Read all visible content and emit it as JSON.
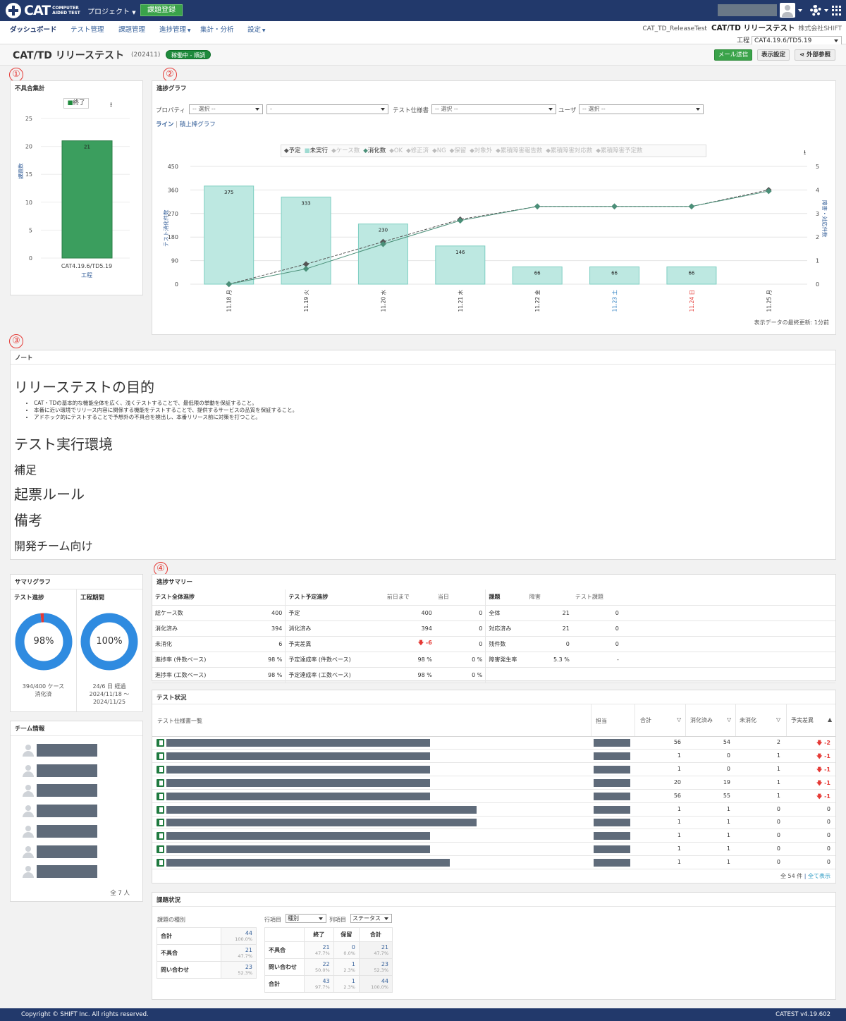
{
  "app": {
    "logo_text": "CAT",
    "logo_sub1": "COMPUTER",
    "logo_sub2": "AIDED TEST",
    "project_menu": "プロジェクト",
    "register_button": "課題登録"
  },
  "nav": {
    "items": [
      {
        "label": "ダッシュボード",
        "active": true
      },
      {
        "label": "テスト管理"
      },
      {
        "label": "課題管理"
      },
      {
        "label": "進捗管理"
      },
      {
        "label": "集計・分析"
      },
      {
        "label": "設定"
      }
    ],
    "release_test": "CAT_TD_ReleaseTest",
    "project_title": "CAT/TD リリーステスト",
    "company": "株式会社SHIFT",
    "koutei_label": "工程",
    "koutei_value": "CAT4.19.6/TD5.19"
  },
  "titlebar": {
    "title": "CAT/TD リリーステスト",
    "code": "(202411)",
    "status": "稼働中 - 順調",
    "mail_button": "メール送信",
    "display_button": "表示設定",
    "external_button": "外部参照"
  },
  "markers": [
    "①",
    "②",
    "③",
    "④"
  ],
  "defect_panel": {
    "title": "不具合集計",
    "legend": "終了",
    "ylabel": "課題数",
    "xlabel": "工程",
    "category": "CAT4.19.6/TD5.19",
    "value": 21,
    "yticks": [
      "25",
      "20",
      "15",
      "10",
      "5",
      "0"
    ],
    "bar_color": "#3b9e5e"
  },
  "progress_graph": {
    "title": "進捗グラフ",
    "property_label": "プロパティ",
    "select_placeholder": "-- 選択 --",
    "select_empty": "-",
    "spec_label": "テスト仕様書",
    "user_label": "ユーザ",
    "line_link": "ライン",
    "stack_link": "積上棒グラフ",
    "separator": "|",
    "legend": [
      {
        "label": "予定",
        "mark": "◆",
        "on": true,
        "color": "#555"
      },
      {
        "label": "未実行",
        "mark": "■",
        "on": true,
        "color": "#9fdbd2"
      },
      {
        "label": "ケース数",
        "mark": "◆",
        "on": false
      },
      {
        "label": "消化数",
        "mark": "◆",
        "on": true,
        "color": "#4a8f78"
      },
      {
        "label": "OK",
        "mark": "◆",
        "on": false
      },
      {
        "label": "修正済",
        "mark": "◆",
        "on": false
      },
      {
        "label": "NG",
        "mark": "◆",
        "on": false
      },
      {
        "label": "保留",
        "mark": "◆",
        "on": false
      },
      {
        "label": "対象外",
        "mark": "◆",
        "on": false
      },
      {
        "label": "累積障害報告数",
        "mark": "◆",
        "on": false
      },
      {
        "label": "累積障害対応数",
        "mark": "◆",
        "on": false
      },
      {
        "label": "累積障害予定数",
        "mark": "◆",
        "on": false
      }
    ],
    "ylabel_left": "テスト消化件数",
    "ylabel_right": "障害・対応件数",
    "last_update": "表示データの最終更新: 1分前"
  },
  "chart_data": {
    "type": "bar",
    "categories": [
      "11.18 月",
      "11.19 火",
      "11.20 水",
      "11.21 木",
      "11.22 金",
      "11.23 土",
      "11.24 日",
      "11.25 月"
    ],
    "category_colors": [
      "#333",
      "#333",
      "#333",
      "#333",
      "#333",
      "#2e7fc1",
      "#e53935",
      "#333"
    ],
    "series": [
      {
        "name": "未実行",
        "type": "bar",
        "values": [
          375,
          333,
          230,
          146,
          66,
          66,
          66,
          null
        ],
        "color": "#bde8e1"
      },
      {
        "name": "予定",
        "type": "line",
        "axis": "right",
        "values": [
          0,
          0.85,
          1.8,
          2.75,
          3.3,
          3.3,
          3.3,
          4.0
        ],
        "color": "#555"
      },
      {
        "name": "消化数",
        "type": "line",
        "axis": "right",
        "values": [
          0,
          0.65,
          1.7,
          2.7,
          3.3,
          3.3,
          3.3,
          3.95
        ],
        "color": "#4a8f78"
      }
    ],
    "ylim_left": [
      0,
      450
    ],
    "yticks_left": [
      "450",
      "360",
      "270",
      "180",
      "90",
      "0"
    ],
    "ylim_right": [
      0,
      5
    ],
    "yticks_right": [
      "5",
      "4",
      "3",
      "2",
      "1",
      "0"
    ],
    "ylabel": "テスト消化件数",
    "ylabel_right": "障害・対応件数",
    "grid": true,
    "legend_position": "top"
  },
  "note": {
    "title": "ノート",
    "h_purpose": "リリーステストの目的",
    "bullets": [
      "CAT・TDの基本的な機能全体を広く、浅くテストすることで、最低限の挙動を保証すること。",
      "本番に近い環境でリリース内容に関係する機能をテストすることで、提供するサービスの品質を保証すること。",
      "アドホック的にテストすることで予想外の不具合を検出し、本番リリース前に対策を打つこと。"
    ],
    "h_env": "テスト実行環境",
    "h_supplement": "補足",
    "h_ticket_rule": "起票ルール",
    "h_remarks": "備考",
    "h_dev_team": "開発チーム向け"
  },
  "summary_graph": {
    "title": "サマリグラフ",
    "test_progress_label": "テスト進捗",
    "period_label": "工程期間",
    "test_pct": "98%",
    "test_pct_value": 98,
    "period_pct": "100%",
    "period_pct_value": 100,
    "test_caption1": "394/400 ケース",
    "test_caption2": "消化済",
    "period_caption1": "24/6 日 経過",
    "period_caption2": "2024/11/18 ～",
    "period_caption3": "2024/11/25",
    "ring_color": "#2f8be0",
    "alert_color": "#e53935"
  },
  "team": {
    "title": "チーム情報",
    "members": 7,
    "total": "全 7 人"
  },
  "progress_summary": {
    "title": "進捗サマリー",
    "col1_head": "テスト全体進捗",
    "col2_head": "テスト予定進捗",
    "col2_sub1": "前日まで",
    "col2_sub2": "当日",
    "col3_head": "課題",
    "col3_sub1": "障害",
    "col3_sub2": "テスト課題",
    "rows": [
      {
        "l": "総ケース数",
        "lv": "400",
        "m": "予定",
        "mv1": "400",
        "mv2": "0",
        "r": "全体",
        "rv1": "21",
        "rv2": "0"
      },
      {
        "l": "消化済み",
        "lv": "394",
        "m": "消化済み",
        "mv1": "394",
        "mv2": "0",
        "r": "対応済み",
        "rv1": "21",
        "rv2": "0"
      },
      {
        "l": "未消化",
        "lv": "6",
        "m": "予実差異",
        "mv1": "-6",
        "mv2": "0",
        "r": "残件数",
        "rv1": "0",
        "rv2": "0"
      },
      {
        "l": "進捗率 (件数ベース)",
        "lv": "98 %",
        "m": "予定達成率 (件数ベース)",
        "mv1": "98 %",
        "mv2": "0 %",
        "r": "障害発生率",
        "rv1": "5.3 %",
        "rv2": "-"
      },
      {
        "l": "進捗率 (工数ベース)",
        "lv": "98 %",
        "m": "予定達成率 (工数ベース)",
        "mv1": "98 %",
        "mv2": "0 %",
        "r": "",
        "rv1": "",
        "rv2": ""
      }
    ]
  },
  "test_status": {
    "title": "テスト状況",
    "col_spec": "テスト仕様書一覧",
    "col_owner": "担当",
    "col_total": "合計",
    "col_done": "消化済み",
    "col_undone": "未消化",
    "col_diff": "予実差異",
    "rows": [
      {
        "total": "56",
        "done": "54",
        "undone": "2",
        "diff": "-2",
        "neg": true,
        "w": 374
      },
      {
        "total": "1",
        "done": "0",
        "undone": "1",
        "diff": "-1",
        "neg": true,
        "w": 374
      },
      {
        "total": "1",
        "done": "0",
        "undone": "1",
        "diff": "-1",
        "neg": true,
        "w": 374
      },
      {
        "total": "20",
        "done": "19",
        "undone": "1",
        "diff": "-1",
        "neg": true,
        "w": 374
      },
      {
        "total": "56",
        "done": "55",
        "undone": "1",
        "diff": "-1",
        "neg": true,
        "w": 374
      },
      {
        "total": "1",
        "done": "1",
        "undone": "0",
        "diff": "0",
        "neg": false,
        "w": 440
      },
      {
        "total": "1",
        "done": "1",
        "undone": "0",
        "diff": "0",
        "neg": false,
        "w": 440
      },
      {
        "total": "1",
        "done": "1",
        "undone": "0",
        "diff": "0",
        "neg": false,
        "w": 374
      },
      {
        "total": "1",
        "done": "1",
        "undone": "0",
        "diff": "0",
        "neg": false,
        "w": 374
      },
      {
        "total": "1",
        "done": "1",
        "undone": "0",
        "diff": "0",
        "neg": false,
        "w": 402
      }
    ],
    "total_count": "全 54 件",
    "separator": "|",
    "show_all": "全て表示"
  },
  "issue_status": {
    "title": "課題状況",
    "type_label": "課題の種別",
    "types": [
      {
        "label": "合計",
        "v": "44",
        "p": "100.0%"
      },
      {
        "label": "不具合",
        "v": "21",
        "p": "47.7%"
      },
      {
        "label": "問い合わせ",
        "v": "23",
        "p": "52.3%"
      }
    ],
    "row_item_label": "行項目",
    "row_item_value": "種別",
    "col_item_label": "列項目",
    "col_item_value": "ステータス",
    "cross_heads": [
      "終了",
      "保留",
      "合計"
    ],
    "cross_rows": [
      {
        "label": "不具合",
        "cells": [
          {
            "v": "21",
            "p": "47.7%"
          },
          {
            "v": "0",
            "p": "0.0%"
          },
          {
            "v": "21",
            "p": "47.7%"
          }
        ]
      },
      {
        "label": "問い合わせ",
        "cells": [
          {
            "v": "22",
            "p": "50.0%"
          },
          {
            "v": "1",
            "p": "2.3%"
          },
          {
            "v": "23",
            "p": "52.3%"
          }
        ]
      },
      {
        "label": "合計",
        "cells": [
          {
            "v": "43",
            "p": "97.7%"
          },
          {
            "v": "1",
            "p": "2.3%"
          },
          {
            "v": "44",
            "p": "100.0%"
          }
        ]
      }
    ]
  },
  "footer": {
    "copyright": "Copyright © SHIFT Inc. All rights reserved.",
    "version": "CATEST v4.19.602"
  }
}
